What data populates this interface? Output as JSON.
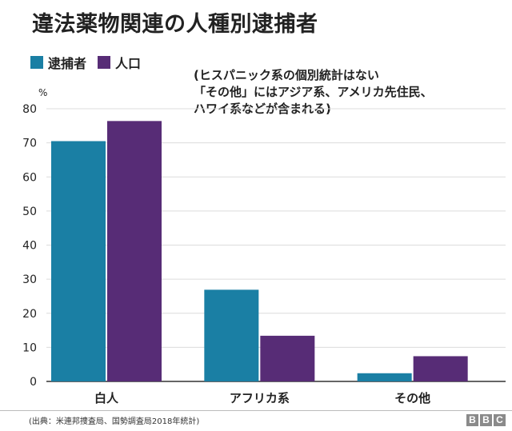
{
  "chart_data": {
    "type": "bar",
    "title": "違法薬物関連の人種別逮捕者",
    "ylabel": "%",
    "xlabel": "",
    "ylim": [
      0,
      80
    ],
    "yticks": [
      0,
      10,
      20,
      30,
      40,
      50,
      60,
      70,
      80
    ],
    "categories": [
      "白人",
      "アフリカ系",
      "その他"
    ],
    "series": [
      {
        "name": "逮捕者",
        "color": "#1a7fa4",
        "values": [
          70.5,
          26.9,
          2.4
        ]
      },
      {
        "name": "人口",
        "color": "#572c76",
        "values": [
          76.4,
          13.4,
          7.4
        ]
      }
    ],
    "grid": true,
    "legend_position": "top-left",
    "annotation": [
      "(ヒスパニック系の個別統計はない",
      "「その他」にはアジア系、アメリカ先住民、",
      "ハワイ系などが含まれる)"
    ]
  },
  "footer": {
    "source": "(出典：米連邦捜査局、国勢調査局2018年統計)",
    "logo": [
      "B",
      "B",
      "C"
    ]
  }
}
